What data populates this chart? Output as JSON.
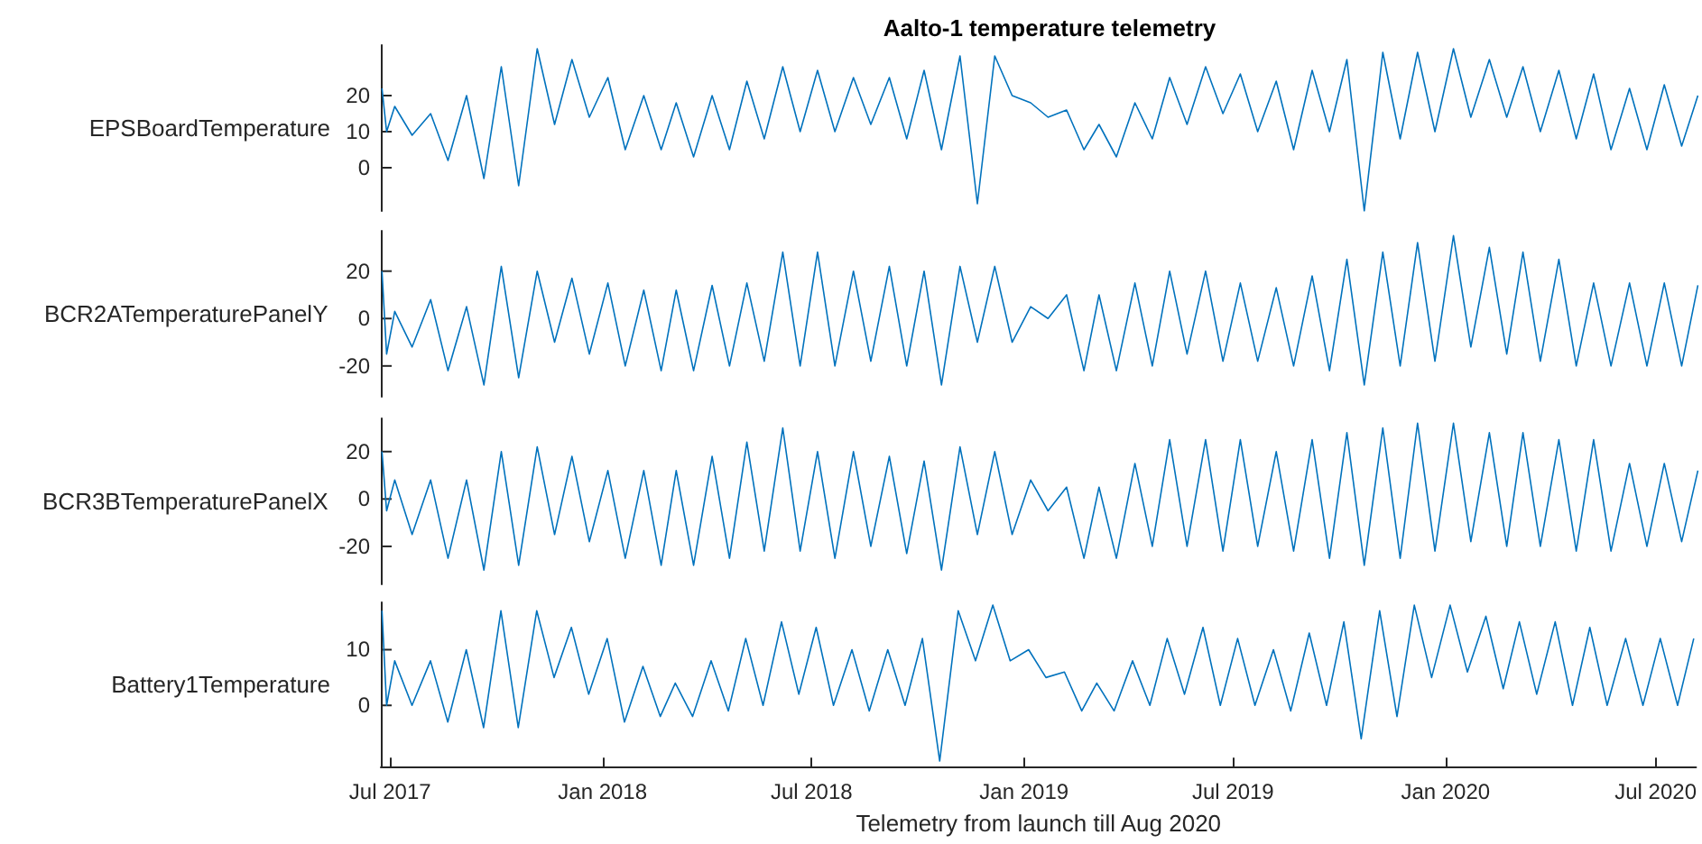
{
  "chart_data": [
    {
      "type": "line",
      "title": "Aalto-1 temperature telemetry",
      "ylabel": "EPSBoardTemperature",
      "tick_labels": "y",
      "xlim": [
        "2017-06-23",
        "2020-08-05"
      ],
      "ylim": [
        -12,
        34
      ],
      "yticks": [
        0,
        10,
        20
      ],
      "x": [
        "2017-06-24",
        "2017-06-28",
        "2017-07-05",
        "2017-07-20",
        "2017-08-05",
        "2017-08-20",
        "2017-09-05",
        "2017-09-20",
        "2017-10-05",
        "2017-10-20",
        "2017-11-05",
        "2017-11-20",
        "2017-12-05",
        "2017-12-20",
        "2018-01-05",
        "2018-01-20",
        "2018-02-05",
        "2018-02-20",
        "2018-03-05",
        "2018-03-20",
        "2018-04-05",
        "2018-04-20",
        "2018-05-05",
        "2018-05-20",
        "2018-06-05",
        "2018-06-20",
        "2018-07-05",
        "2018-07-20",
        "2018-08-05",
        "2018-08-20",
        "2018-09-05",
        "2018-09-20",
        "2018-10-05",
        "2018-10-20",
        "2018-11-05",
        "2018-11-20",
        "2018-12-05",
        "2018-12-20",
        "2019-01-05",
        "2019-01-20",
        "2019-02-05",
        "2019-02-20",
        "2019-03-05",
        "2019-03-20",
        "2019-04-05",
        "2019-04-20",
        "2019-05-05",
        "2019-05-20",
        "2019-06-05",
        "2019-06-20",
        "2019-07-05",
        "2019-07-20",
        "2019-08-05",
        "2019-08-20",
        "2019-09-05",
        "2019-09-20",
        "2019-10-05",
        "2019-10-20",
        "2019-11-05",
        "2019-11-20",
        "2019-12-05",
        "2019-12-20",
        "2020-01-05",
        "2020-01-20",
        "2020-02-05",
        "2020-02-20",
        "2020-03-05",
        "2020-03-20",
        "2020-04-05",
        "2020-04-20",
        "2020-05-05",
        "2020-05-20",
        "2020-06-05",
        "2020-06-20",
        "2020-07-05",
        "2020-07-20",
        "2020-08-03"
      ],
      "series": [
        {
          "color": "#0072bd",
          "values": [
            22,
            10,
            17,
            9,
            15,
            2,
            20,
            -3,
            28,
            -5,
            33,
            12,
            30,
            14,
            25,
            5,
            20,
            5,
            18,
            3,
            20,
            5,
            24,
            8,
            28,
            10,
            27,
            10,
            25,
            12,
            25,
            8,
            27,
            5,
            31,
            -10,
            31,
            20,
            18,
            14,
            16,
            5,
            12,
            3,
            18,
            8,
            25,
            12,
            28,
            15,
            26,
            10,
            24,
            5,
            27,
            10,
            30,
            -12,
            32,
            8,
            32,
            10,
            33,
            14,
            30,
            14,
            28,
            10,
            27,
            8,
            26,
            5,
            22,
            5,
            23,
            6,
            20
          ]
        }
      ]
    },
    {
      "type": "line",
      "ylabel": "BCR2ATemperaturePanelY",
      "tick_labels": "y",
      "xlim": [
        "2017-06-23",
        "2020-08-05"
      ],
      "ylim": [
        -33,
        37
      ],
      "yticks": [
        -20,
        0,
        20
      ],
      "x": [
        "2017-06-24",
        "2017-06-28",
        "2017-07-05",
        "2017-07-20",
        "2017-08-05",
        "2017-08-20",
        "2017-09-05",
        "2017-09-20",
        "2017-10-05",
        "2017-10-20",
        "2017-11-05",
        "2017-11-20",
        "2017-12-05",
        "2017-12-20",
        "2018-01-05",
        "2018-01-20",
        "2018-02-05",
        "2018-02-20",
        "2018-03-05",
        "2018-03-20",
        "2018-04-05",
        "2018-04-20",
        "2018-05-05",
        "2018-05-20",
        "2018-06-05",
        "2018-06-20",
        "2018-07-05",
        "2018-07-20",
        "2018-08-05",
        "2018-08-20",
        "2018-09-05",
        "2018-09-20",
        "2018-10-05",
        "2018-10-20",
        "2018-11-05",
        "2018-11-20",
        "2018-12-05",
        "2018-12-20",
        "2019-01-05",
        "2019-01-20",
        "2019-02-05",
        "2019-02-20",
        "2019-03-05",
        "2019-03-20",
        "2019-04-05",
        "2019-04-20",
        "2019-05-05",
        "2019-05-20",
        "2019-06-05",
        "2019-06-20",
        "2019-07-05",
        "2019-07-20",
        "2019-08-05",
        "2019-08-20",
        "2019-09-05",
        "2019-09-20",
        "2019-10-05",
        "2019-10-20",
        "2019-11-05",
        "2019-11-20",
        "2019-12-05",
        "2019-12-20",
        "2020-01-05",
        "2020-01-20",
        "2020-02-05",
        "2020-02-20",
        "2020-03-05",
        "2020-03-20",
        "2020-04-05",
        "2020-04-20",
        "2020-05-05",
        "2020-05-20",
        "2020-06-05",
        "2020-06-20",
        "2020-07-05",
        "2020-07-20",
        "2020-08-03"
      ],
      "series": [
        {
          "color": "#0072bd",
          "values": [
            20,
            -15,
            3,
            -12,
            8,
            -22,
            5,
            -28,
            22,
            -25,
            20,
            -10,
            17,
            -15,
            15,
            -20,
            12,
            -22,
            12,
            -22,
            14,
            -20,
            15,
            -18,
            28,
            -20,
            28,
            -20,
            20,
            -18,
            22,
            -20,
            20,
            -28,
            22,
            -10,
            22,
            -10,
            5,
            0,
            10,
            -22,
            10,
            -22,
            15,
            -20,
            20,
            -15,
            20,
            -18,
            15,
            -18,
            13,
            -20,
            18,
            -22,
            25,
            -28,
            28,
            -20,
            32,
            -18,
            35,
            -12,
            30,
            -15,
            28,
            -18,
            25,
            -20,
            15,
            -20,
            15,
            -20,
            15,
            -20,
            14
          ]
        }
      ]
    },
    {
      "type": "line",
      "ylabel": "BCR3BTemperaturePanelX",
      "tick_labels": "y",
      "xlim": [
        "2017-06-23",
        "2020-08-05"
      ],
      "ylim": [
        -36,
        34
      ],
      "yticks": [
        -20,
        0,
        20
      ],
      "x": [
        "2017-06-24",
        "2017-06-28",
        "2017-07-05",
        "2017-07-20",
        "2017-08-05",
        "2017-08-20",
        "2017-09-05",
        "2017-09-20",
        "2017-10-05",
        "2017-10-20",
        "2017-11-05",
        "2017-11-20",
        "2017-12-05",
        "2017-12-20",
        "2018-01-05",
        "2018-01-20",
        "2018-02-05",
        "2018-02-20",
        "2018-03-05",
        "2018-03-20",
        "2018-04-05",
        "2018-04-20",
        "2018-05-05",
        "2018-05-20",
        "2018-06-05",
        "2018-06-20",
        "2018-07-05",
        "2018-07-20",
        "2018-08-05",
        "2018-08-20",
        "2018-09-05",
        "2018-09-20",
        "2018-10-05",
        "2018-10-20",
        "2018-11-05",
        "2018-11-20",
        "2018-12-05",
        "2018-12-20",
        "2019-01-05",
        "2019-01-20",
        "2019-02-05",
        "2019-02-20",
        "2019-03-05",
        "2019-03-20",
        "2019-04-05",
        "2019-04-20",
        "2019-05-05",
        "2019-05-20",
        "2019-06-05",
        "2019-06-20",
        "2019-07-05",
        "2019-07-20",
        "2019-08-05",
        "2019-08-20",
        "2019-09-05",
        "2019-09-20",
        "2019-10-05",
        "2019-10-20",
        "2019-11-05",
        "2019-11-20",
        "2019-12-05",
        "2019-12-20",
        "2020-01-05",
        "2020-01-20",
        "2020-02-05",
        "2020-02-20",
        "2020-03-05",
        "2020-03-20",
        "2020-04-05",
        "2020-04-20",
        "2020-05-05",
        "2020-05-20",
        "2020-06-05",
        "2020-06-20",
        "2020-07-05",
        "2020-07-20",
        "2020-08-03"
      ],
      "series": [
        {
          "color": "#0072bd",
          "values": [
            20,
            -5,
            8,
            -15,
            8,
            -25,
            8,
            -30,
            20,
            -28,
            22,
            -15,
            18,
            -18,
            12,
            -25,
            12,
            -28,
            12,
            -28,
            18,
            -25,
            24,
            -22,
            30,
            -22,
            20,
            -25,
            20,
            -20,
            18,
            -23,
            16,
            -30,
            22,
            -15,
            20,
            -15,
            8,
            -5,
            5,
            -25,
            5,
            -25,
            15,
            -20,
            25,
            -20,
            25,
            -22,
            25,
            -20,
            20,
            -22,
            25,
            -25,
            28,
            -28,
            30,
            -25,
            32,
            -22,
            32,
            -18,
            28,
            -20,
            28,
            -20,
            25,
            -22,
            25,
            -22,
            15,
            -20,
            15,
            -18,
            12
          ]
        }
      ]
    },
    {
      "type": "line",
      "ylabel": "Battery1Temperature",
      "xlabel": "Telemetry from launch till Aug 2020",
      "xlim": [
        "2017-06-23",
        "2020-08-05"
      ],
      "xticks": [
        {
          "value": "2017-07-01",
          "label": "Jul 2017"
        },
        {
          "value": "2018-01-01",
          "label": "Jan 2018"
        },
        {
          "value": "2018-07-01",
          "label": "Jul 2018"
        },
        {
          "value": "2019-01-01",
          "label": "Jan 2019"
        },
        {
          "value": "2019-07-01",
          "label": "Jul 2019"
        },
        {
          "value": "2020-01-01",
          "label": "Jan 2020"
        },
        {
          "value": "2020-07-01",
          "label": "Jul 2020"
        }
      ],
      "ylim": [
        -11,
        18.5
      ],
      "yticks": [
        0,
        10
      ],
      "x": [
        "2017-06-24",
        "2017-06-28",
        "2017-07-05",
        "2017-07-20",
        "2017-08-05",
        "2017-08-20",
        "2017-09-05",
        "2017-09-20",
        "2017-10-05",
        "2017-10-20",
        "2017-11-05",
        "2017-11-20",
        "2017-12-05",
        "2017-12-20",
        "2018-01-05",
        "2018-01-20",
        "2018-02-05",
        "2018-02-20",
        "2018-03-05",
        "2018-03-20",
        "2018-04-05",
        "2018-04-20",
        "2018-05-05",
        "2018-05-20",
        "2018-06-05",
        "2018-06-20",
        "2018-07-05",
        "2018-07-20",
        "2018-08-05",
        "2018-08-20",
        "2018-09-05",
        "2018-09-20",
        "2018-10-05",
        "2018-10-20",
        "2018-11-05",
        "2018-11-20",
        "2018-12-05",
        "2018-12-20",
        "2019-01-05",
        "2019-01-20",
        "2019-02-05",
        "2019-02-20",
        "2019-03-05",
        "2019-03-20",
        "2019-04-05",
        "2019-04-20",
        "2019-05-05",
        "2019-05-20",
        "2019-06-05",
        "2019-06-20",
        "2019-07-05",
        "2019-07-20",
        "2019-08-05",
        "2019-08-20",
        "2019-09-05",
        "2019-09-20",
        "2019-10-05",
        "2019-10-20",
        "2019-11-05",
        "2019-11-20",
        "2019-12-05",
        "2019-12-20",
        "2020-01-05",
        "2020-01-20",
        "2020-02-05",
        "2020-02-20",
        "2020-03-05",
        "2020-03-20",
        "2020-04-05",
        "2020-04-20",
        "2020-05-05",
        "2020-05-20",
        "2020-06-05",
        "2020-06-20",
        "2020-07-05",
        "2020-07-20",
        "2020-08-03"
      ],
      "series": [
        {
          "color": "#0072bd",
          "values": [
            17,
            0,
            8,
            0,
            8,
            -3,
            10,
            -4,
            17,
            -4,
            17,
            5,
            14,
            2,
            12,
            -3,
            7,
            -2,
            4,
            -2,
            8,
            -1,
            12,
            0,
            15,
            2,
            14,
            0,
            10,
            -1,
            10,
            0,
            12,
            -10,
            17,
            8,
            18,
            8,
            10,
            5,
            6,
            -1,
            4,
            -1,
            8,
            0,
            12,
            2,
            14,
            0,
            12,
            0,
            10,
            -1,
            13,
            0,
            15,
            -6,
            17,
            -2,
            18,
            5,
            18,
            6,
            16,
            3,
            15,
            2,
            15,
            0,
            14,
            0,
            12,
            0,
            12,
            0,
            12
          ]
        }
      ]
    }
  ]
}
